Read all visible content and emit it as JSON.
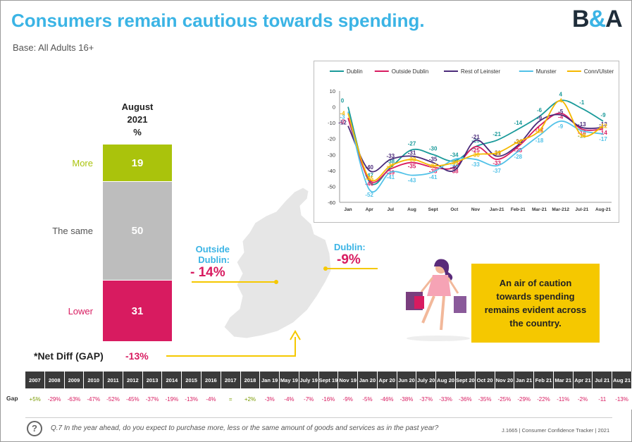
{
  "title": "Consumers remain cautious towards spending.",
  "base": "Base: All Adults 16+",
  "logo": {
    "left": "B",
    "amp": "&",
    "right": "A"
  },
  "stack": {
    "header_line1": "August",
    "header_line2": "2021",
    "header_line3": "%",
    "segments": [
      {
        "label": "More",
        "value": 19,
        "color": "#aac30c"
      },
      {
        "label": "The same",
        "value": 50,
        "color": "#bdbdbd"
      },
      {
        "label": "Lower",
        "value": 31,
        "color": "#d81b60"
      }
    ],
    "net_label": "*Net Diff (GAP)",
    "net_value": "-13%"
  },
  "map": {
    "outside_label": "Outside Dublin:",
    "outside_value": "- 14%",
    "dublin_label": "Dublin:",
    "dublin_value": "-9%"
  },
  "callout": "An air of caution towards spending remains evident across the country.",
  "chart_data": {
    "type": "line",
    "title": "",
    "xlabel": "",
    "ylabel": "",
    "ylim": [
      -60,
      10
    ],
    "yticks": [
      10,
      0,
      -10,
      -20,
      -30,
      -40,
      -50,
      -60
    ],
    "categories": [
      "Jan",
      "Apr",
      "Jul",
      "Aug",
      "Sept",
      "Oct",
      "Nov",
      "Jan-21",
      "Feb-21",
      "Mar-21",
      "Mar-212",
      "Jul-21",
      "Aug-21"
    ],
    "series": [
      {
        "name": "Dublin",
        "color": "#1a9a9a",
        "values": [
          0,
          -47,
          -38,
          -27,
          -30,
          -34,
          -25,
          -21,
          -14,
          -6,
          4,
          -1,
          -9
        ]
      },
      {
        "name": "Outside Dublin",
        "color": "#d81b60",
        "values": [
          -7,
          -46,
          -39,
          -35,
          -38,
          -38,
          -25,
          -33,
          -25,
          -12,
          -4,
          -14,
          -14
        ]
      },
      {
        "name": "Rest of Leinster",
        "color": "#4b2a7a",
        "values": [
          -12,
          -40,
          -33,
          -31,
          -35,
          -40,
          -21,
          -31,
          -24,
          -9,
          -5,
          -13,
          -13
        ]
      },
      {
        "name": "Munster",
        "color": "#52c2e8",
        "values": [
          -3,
          -52,
          -41,
          -43,
          -41,
          -33,
          -33,
          -37,
          -28,
          -18,
          -9,
          -15,
          -17
        ]
      },
      {
        "name": "Conn/Ulster",
        "color": "#f5b800",
        "values": [
          -4,
          -45,
          -37,
          -33,
          -37,
          -35,
          -30,
          -29,
          -22,
          -15,
          4,
          -18,
          -12
        ]
      }
    ]
  },
  "gap_table": {
    "row_label": "Gap",
    "headers": [
      "2007",
      "2008",
      "2009",
      "2010",
      "2011",
      "2012",
      "2013",
      "2014",
      "2015",
      "2016",
      "2017",
      "2018",
      "Jan 19",
      "May 19",
      "July 19",
      "Sept 19",
      "Nov 19",
      "Jan 20",
      "Apr 20",
      "Jun 20",
      "July 20",
      "Aug 20",
      "Sept 20",
      "Oct 20",
      "Nov 20",
      "Jan 21",
      "Feb 21",
      "Mar 21",
      "Apr 21",
      "Jul 21",
      "Aug 21"
    ],
    "values": [
      "+5%",
      "-29%",
      "-63%",
      "-47%",
      "-52%",
      "-45%",
      "-37%",
      "-19%",
      "-13%",
      "-4%",
      "=",
      "+2%",
      "-3%",
      "-4%",
      "-7%",
      "-16%",
      "-9%",
      "-5%",
      "-46%",
      "-38%",
      "-37%",
      "-33%",
      "-36%",
      "-35%",
      "-25%",
      "-29%",
      "-22%",
      "-11%",
      "-2%",
      "-11",
      "-13%"
    ],
    "positive_color": "#7a9a00",
    "negative_color": "#d81b60"
  },
  "footer": {
    "question_icon": "?",
    "question": "Q.7 In the year ahead, do you expect to purchase more, less or the same amount of goods and services as in the past year?",
    "source": "J.1665 | Consumer Confidence Tracker | 2021"
  }
}
